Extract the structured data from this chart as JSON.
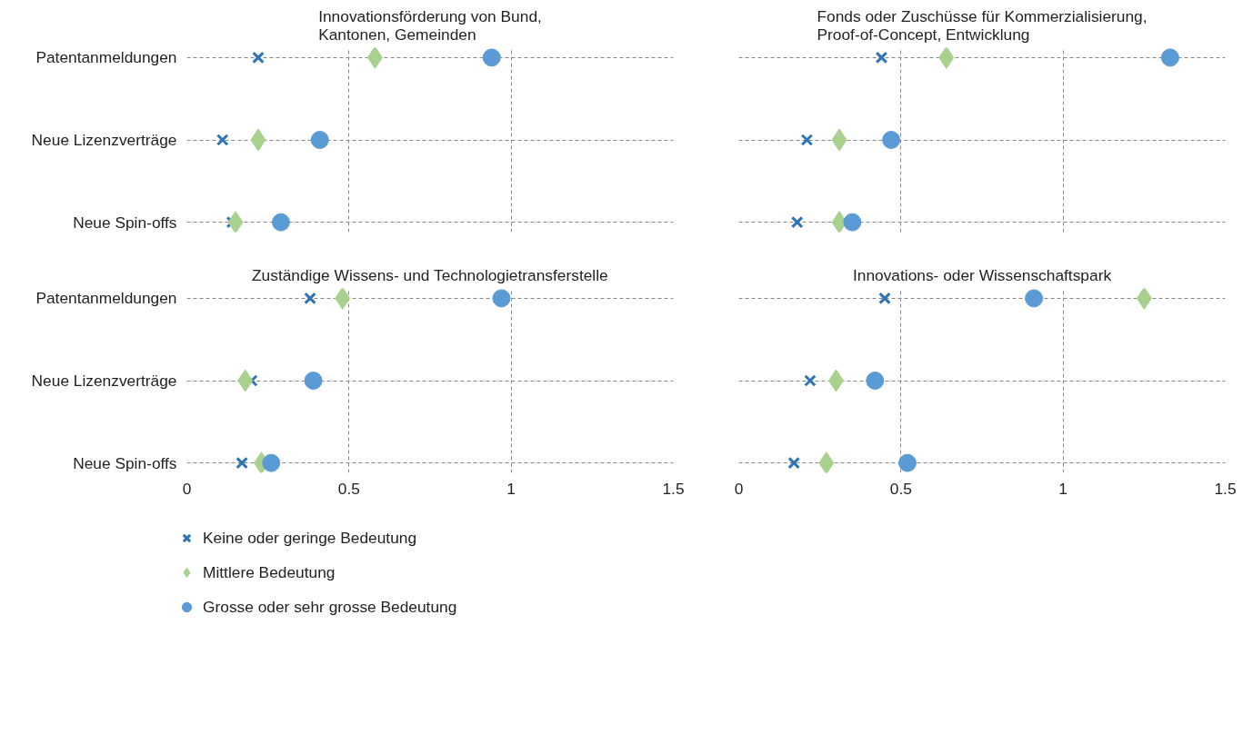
{
  "chart_data": [
    {
      "type": "scatter",
      "title": "Innovationsförderung von Bund,\nKantonen, Gemeinden",
      "categories": [
        "Patentanmeldungen",
        "Neue Lizenzverträge",
        "Neue Spin-offs"
      ],
      "orientation": "horizontal",
      "xlim": [
        0,
        1.5
      ],
      "xticks": [
        0,
        0.5,
        1,
        1.5
      ],
      "grid": true,
      "tick_labels": "y",
      "series": [
        {
          "color": "#2e75b6",
          "marker": "cross",
          "values": [
            0.22,
            0.11,
            0.14
          ]
        },
        {
          "color": "#a9d18e",
          "marker": "diamond",
          "values": [
            0.58,
            0.22,
            0.15
          ]
        },
        {
          "color": "#5b9bd5",
          "marker": "circle",
          "values": [
            0.94,
            0.41,
            0.29
          ]
        }
      ]
    },
    {
      "type": "scatter",
      "title": "Fonds oder Zuschüsse für Kommerzialisierung,\nProof-of-Concept, Entwicklung",
      "categories": [
        null,
        null,
        null
      ],
      "orientation": "horizontal",
      "xlim": [
        0,
        1.5
      ],
      "xticks": [
        0,
        0.5,
        1,
        1.5
      ],
      "grid": true,
      "tick_labels": false,
      "series": [
        {
          "color": "#2e75b6",
          "marker": "cross",
          "values": [
            0.44,
            0.21,
            0.18
          ]
        },
        {
          "color": "#a9d18e",
          "marker": "diamond",
          "values": [
            0.64,
            0.31,
            0.31
          ]
        },
        {
          "color": "#5b9bd5",
          "marker": "circle",
          "values": [
            1.33,
            0.47,
            0.35
          ]
        }
      ]
    },
    {
      "type": "scatter",
      "title": "Zuständige Wissens- und Technologietransferstelle",
      "categories": [
        "Patentanmeldungen",
        "Neue Lizenzverträge",
        "Neue Spin-offs"
      ],
      "orientation": "horizontal",
      "xlim": [
        0,
        1.5
      ],
      "xticks": [
        0,
        0.5,
        1,
        1.5
      ],
      "grid": true,
      "legend": "bottom",
      "series": [
        {
          "name": "Keine oder geringe Bedeutung",
          "color": "#2e75b6",
          "marker": "cross",
          "values": [
            0.38,
            0.2,
            0.17
          ]
        },
        {
          "name": "Mittlere Bedeutung",
          "color": "#a9d18e",
          "marker": "diamond",
          "values": [
            0.48,
            0.18,
            0.23
          ]
        },
        {
          "name": "Grosse oder sehr grosse Bedeutung",
          "color": "#5b9bd5",
          "marker": "circle",
          "values": [
            0.97,
            0.39,
            0.26
          ]
        }
      ]
    },
    {
      "type": "scatter",
      "title": "Innovations- oder Wissenschaftspark",
      "categories": [
        null,
        null,
        null
      ],
      "orientation": "horizontal",
      "xlim": [
        0,
        1.5
      ],
      "xticks": [
        0,
        0.5,
        1,
        1.5
      ],
      "grid": true,
      "tick_labels": "x",
      "series": [
        {
          "color": "#2e75b6",
          "marker": "cross",
          "values": [
            0.45,
            0.22,
            0.17
          ]
        },
        {
          "color": "#a9d18e",
          "marker": "diamond",
          "values": [
            1.25,
            0.3,
            0.27
          ]
        },
        {
          "color": "#5b9bd5",
          "marker": "circle",
          "values": [
            0.91,
            0.42,
            0.52
          ]
        }
      ]
    }
  ]
}
